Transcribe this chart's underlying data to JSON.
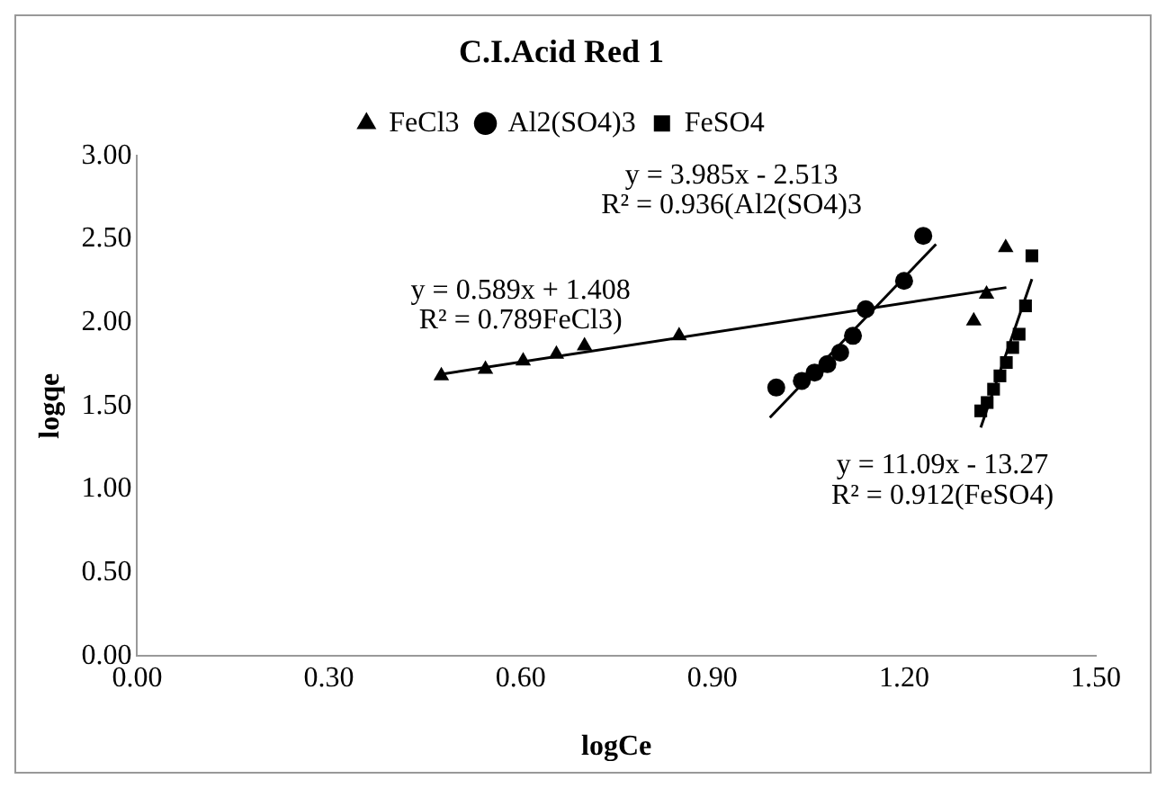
{
  "chart_data": {
    "type": "scatter",
    "title": "C.I.Acid Red 1",
    "xlabel": "logCe",
    "ylabel": "logqe",
    "xlim": [
      0,
      1.5
    ],
    "xticks": [
      {
        "value": 0,
        "label": "0.00"
      },
      {
        "value": 0.3,
        "label": "0.30"
      },
      {
        "value": 0.6,
        "label": "0.60"
      },
      {
        "value": 0.9,
        "label": "0.90"
      },
      {
        "value": 1.2,
        "label": "1.20"
      },
      {
        "value": 1.5,
        "label": "1.50"
      }
    ],
    "ylim": [
      0,
      3
    ],
    "yticks": [
      {
        "value": 0,
        "label": "0.00"
      },
      {
        "value": 0.5,
        "label": "0.50"
      },
      {
        "value": 1,
        "label": "1.00"
      },
      {
        "value": 1.5,
        "label": "1.50"
      },
      {
        "value": 2,
        "label": "2.00"
      },
      {
        "value": 2.5,
        "label": "2.50"
      },
      {
        "value": 3,
        "label": "3.00"
      }
    ],
    "grid": false,
    "legend": "top",
    "series": [
      {
        "name": "FeCl3",
        "color": "#000000",
        "marker": "triangle",
        "x": [
          0.476,
          0.545,
          0.604,
          0.656,
          0.7,
          0.848,
          1.309,
          1.329,
          1.359
        ],
        "values": [
          1.68,
          1.72,
          1.77,
          1.81,
          1.86,
          1.92,
          2.01,
          2.17,
          2.45
        ]
      },
      {
        "name": "Al2(SO4)3",
        "color": "#000000",
        "marker": "circle",
        "x": [
          1.0,
          1.04,
          1.06,
          1.08,
          1.1,
          1.12,
          1.14,
          1.2,
          1.23
        ],
        "values": [
          1.61,
          1.65,
          1.7,
          1.75,
          1.82,
          1.92,
          2.08,
          2.25,
          2.52
        ]
      },
      {
        "name": "FeSO4",
        "color": "#000000",
        "marker": "square",
        "x": [
          1.32,
          1.33,
          1.34,
          1.35,
          1.36,
          1.37,
          1.38,
          1.39,
          1.4
        ],
        "values": [
          1.47,
          1.52,
          1.6,
          1.68,
          1.76,
          1.85,
          1.93,
          2.1,
          2.4
        ]
      },
      {
        "type": "line",
        "color": "#000000",
        "marker": "none",
        "x": [
          0.476,
          1.36
        ],
        "values": [
          1.69,
          2.21
        ]
      },
      {
        "type": "line",
        "color": "#000000",
        "marker": "none",
        "x": [
          0.99,
          1.25
        ],
        "values": [
          1.43,
          2.47
        ]
      },
      {
        "type": "line",
        "color": "#000000",
        "marker": "none",
        "x": [
          1.32,
          1.4
        ],
        "values": [
          1.37,
          2.26
        ]
      }
    ],
    "annotations": [
      "y = 0.589x + 1.408",
      "R² = 0.789FeCl3)",
      "y = 3.985x - 2.513",
      "R² = 0.936(Al2(SO4)3",
      "y = 11.09x - 13.27",
      "R² = 0.912(FeSO4)"
    ]
  }
}
